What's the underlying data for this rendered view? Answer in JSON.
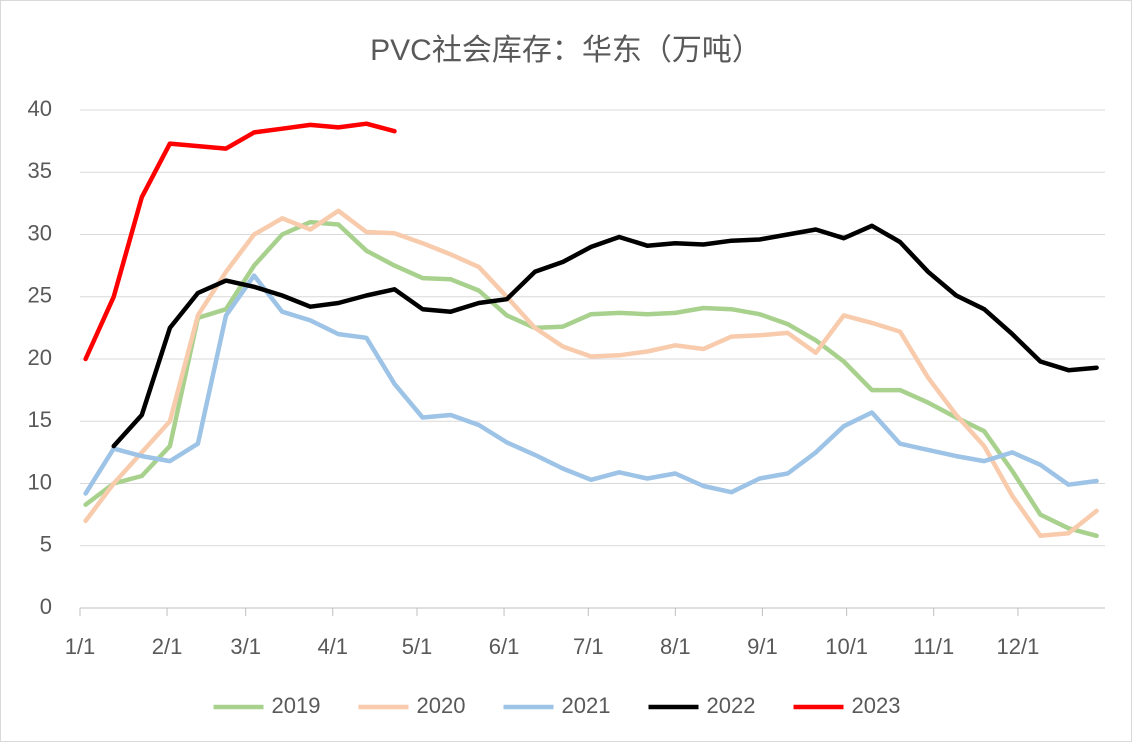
{
  "chart_data": {
    "type": "line",
    "title": "PVC社会库存：华东（万吨）",
    "x": [
      2,
      12,
      22,
      32,
      42,
      52,
      62,
      72,
      82,
      92,
      102,
      112,
      122,
      132,
      142,
      152,
      162,
      172,
      182,
      192,
      202,
      212,
      222,
      232,
      242,
      252,
      262,
      272,
      282,
      292,
      302,
      312,
      322,
      332,
      342,
      352,
      362
    ],
    "xlim": [
      0,
      365
    ],
    "xticks": [
      {
        "value": 0,
        "label": "1/1"
      },
      {
        "value": 31,
        "label": "2/1"
      },
      {
        "value": 59,
        "label": "3/1"
      },
      {
        "value": 90,
        "label": "4/1"
      },
      {
        "value": 120,
        "label": "5/1"
      },
      {
        "value": 151,
        "label": "6/1"
      },
      {
        "value": 181,
        "label": "7/1"
      },
      {
        "value": 212,
        "label": "8/1"
      },
      {
        "value": 243,
        "label": "9/1"
      },
      {
        "value": 273,
        "label": "10/1"
      },
      {
        "value": 304,
        "label": "11/1"
      },
      {
        "value": 334,
        "label": "12/1"
      }
    ],
    "ylim": [
      0,
      40
    ],
    "yticks": [
      0,
      5,
      10,
      15,
      20,
      25,
      30,
      35,
      40
    ],
    "grid": true,
    "legend": "bottom",
    "series": [
      {
        "name": "2019",
        "color": "#a9d18e",
        "values": [
          8.3,
          10,
          10.6,
          13,
          23.3,
          24,
          27.5,
          30,
          31,
          30.8,
          28.7,
          27.5,
          26.5,
          26.4,
          25.5,
          23.5,
          22.5,
          22.6,
          23.6,
          23.7,
          23.6,
          23.7,
          24.1,
          24,
          23.6,
          22.8,
          21.5,
          19.8,
          17.5,
          17.5,
          16.5,
          15.3,
          14.2,
          11,
          7.5,
          6.4,
          5.8
        ]
      },
      {
        "name": "2020",
        "color": "#f8cbad",
        "values": [
          7,
          10,
          12.5,
          15,
          23.5,
          27,
          30,
          31.3,
          30.4,
          31.9,
          30.2,
          30.1,
          29.3,
          28.4,
          27.4,
          25,
          22.5,
          21,
          20.2,
          20.3,
          20.6,
          21.1,
          20.8,
          21.8,
          21.9,
          22.1,
          20.5,
          23.5,
          22.9,
          22.2,
          18.5,
          15.5,
          13,
          9,
          5.8,
          6,
          7.8
        ]
      },
      {
        "name": "2021",
        "color": "#9dc3e6",
        "values": [
          9.2,
          12.8,
          12.2,
          11.8,
          13.2,
          23.5,
          26.7,
          23.8,
          23.1,
          22,
          21.7,
          18,
          15.3,
          15.5,
          14.7,
          13.3,
          12.3,
          11.2,
          10.3,
          10.9,
          10.4,
          10.8,
          9.8,
          9.3,
          10.4,
          10.8,
          12.5,
          14.6,
          15.7,
          13.2,
          12.7,
          12.2,
          11.8,
          12.5,
          11.5,
          9.9,
          10.2
        ]
      },
      {
        "name": "2022",
        "color": "#000000",
        "values": [
          null,
          13,
          15.5,
          22.5,
          25.3,
          26.3,
          25.8,
          25.1,
          24.2,
          24.5,
          25.1,
          25.6,
          24,
          23.8,
          24.5,
          24.8,
          27,
          27.8,
          29,
          29.8,
          29.1,
          29.3,
          29.2,
          29.5,
          29.6,
          30,
          30.4,
          29.7,
          30.7,
          29.4,
          27,
          25.1,
          24,
          22,
          19.8,
          19.1,
          19.3
        ]
      },
      {
        "name": "2023",
        "color": "#ff0000",
        "values": [
          20,
          25,
          33,
          37.3,
          37.1,
          36.9,
          38.2,
          38.5,
          38.8,
          38.6,
          38.9,
          38.3,
          null,
          null,
          null,
          null,
          null,
          null,
          null,
          null,
          null,
          null,
          null,
          null,
          null,
          null,
          null,
          null,
          null,
          null,
          null,
          null,
          null,
          null,
          null,
          null,
          null
        ]
      }
    ]
  }
}
